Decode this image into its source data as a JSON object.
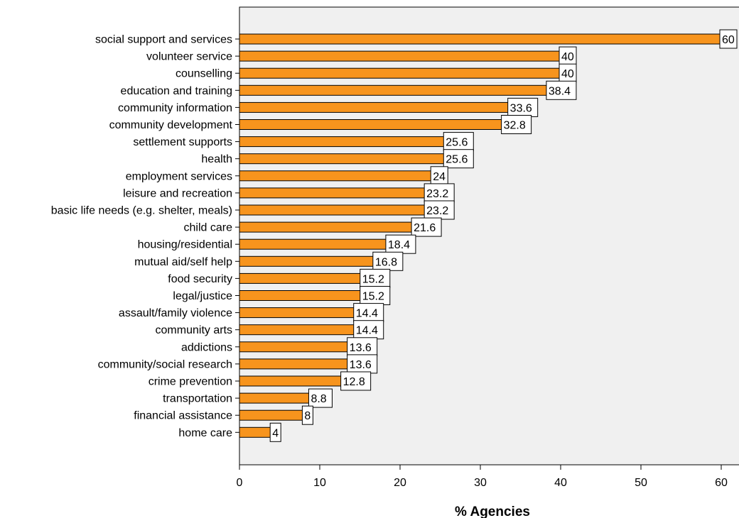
{
  "chart_data": {
    "type": "bar",
    "orientation": "horizontal",
    "title": "",
    "xlabel": "% Agencies",
    "ylabel": "",
    "xlim": [
      0,
      62
    ],
    "x_ticks": [
      0,
      10,
      20,
      30,
      40,
      50,
      60
    ],
    "grid": false,
    "bar_color": "#f7941d",
    "plot_background": "#f0f0f0",
    "categories": [
      "social support and services",
      "volunteer service",
      "counselling",
      "education and training",
      "community information",
      "community development",
      "settlement supports",
      "health",
      "employment services",
      "leisure and recreation",
      "basic life needs (e.g. shelter, meals)",
      "child care",
      "housing/residential",
      "mutual aid/self help",
      "food security",
      "legal/justice",
      "assault/family violence",
      "community arts",
      "addictions",
      "community/social research",
      "crime prevention",
      "transportation",
      "financial assistance",
      "home care"
    ],
    "values": [
      60,
      40,
      40,
      38.4,
      33.6,
      32.8,
      25.6,
      25.6,
      24,
      23.2,
      23.2,
      21.6,
      18.4,
      16.8,
      15.2,
      15.2,
      14.4,
      14.4,
      13.6,
      13.6,
      12.8,
      8.8,
      8,
      4
    ]
  }
}
